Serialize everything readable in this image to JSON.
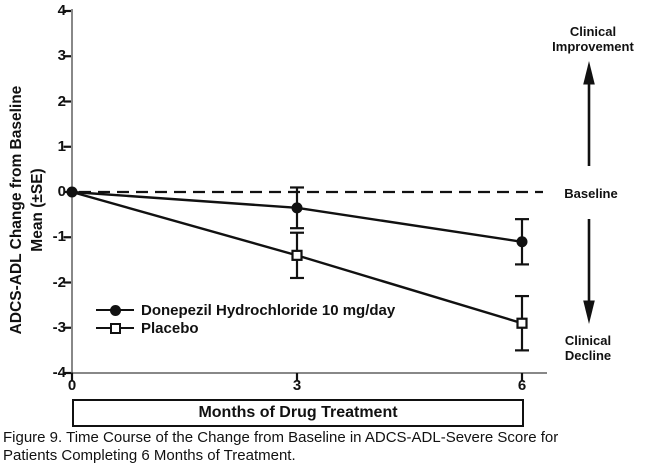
{
  "colors": {
    "ink": "#111111",
    "background": "#ffffff"
  },
  "chart_data": {
    "type": "line",
    "title": "",
    "xlabel": "Months of Drug Treatment",
    "ylabel_line1": "ADCS-ADL Change from Baseline",
    "ylabel_line2": "Mean (±SE)",
    "x": [
      0,
      3,
      6
    ],
    "xtick_labels": [
      "0",
      "3",
      "6"
    ],
    "ytick_labels": [
      "4",
      "3",
      "2",
      "1",
      "0",
      "-1",
      "-2",
      "-3",
      "-4"
    ],
    "ylim": [
      -4,
      4
    ],
    "xlim": [
      0,
      6
    ],
    "grid": "off",
    "baseline": {
      "value": 0,
      "style": "dashed"
    },
    "legend_position": "inside-lower-left",
    "series": [
      {
        "name": "Donepezil Hydrochloride 10 mg/day",
        "marker": "filled-circle",
        "values": [
          0,
          -0.35,
          -1.1
        ],
        "se": [
          0,
          0.45,
          0.5
        ]
      },
      {
        "name": "Placebo",
        "marker": "open-square",
        "values": [
          0,
          -1.4,
          -2.9
        ],
        "se": [
          0,
          0.5,
          0.6
        ]
      }
    ]
  },
  "annotations": {
    "improvement_line1": "Clinical",
    "improvement_line2": "Improvement",
    "baseline_label": "Baseline",
    "decline_line1": "Clinical",
    "decline_line2": "Decline"
  },
  "caption": {
    "line1": "Figure 9. Time Course of the Change from Baseline in ADCS-ADL-Severe Score for",
    "line2": "Patients Completing 6 Months of Treatment."
  }
}
